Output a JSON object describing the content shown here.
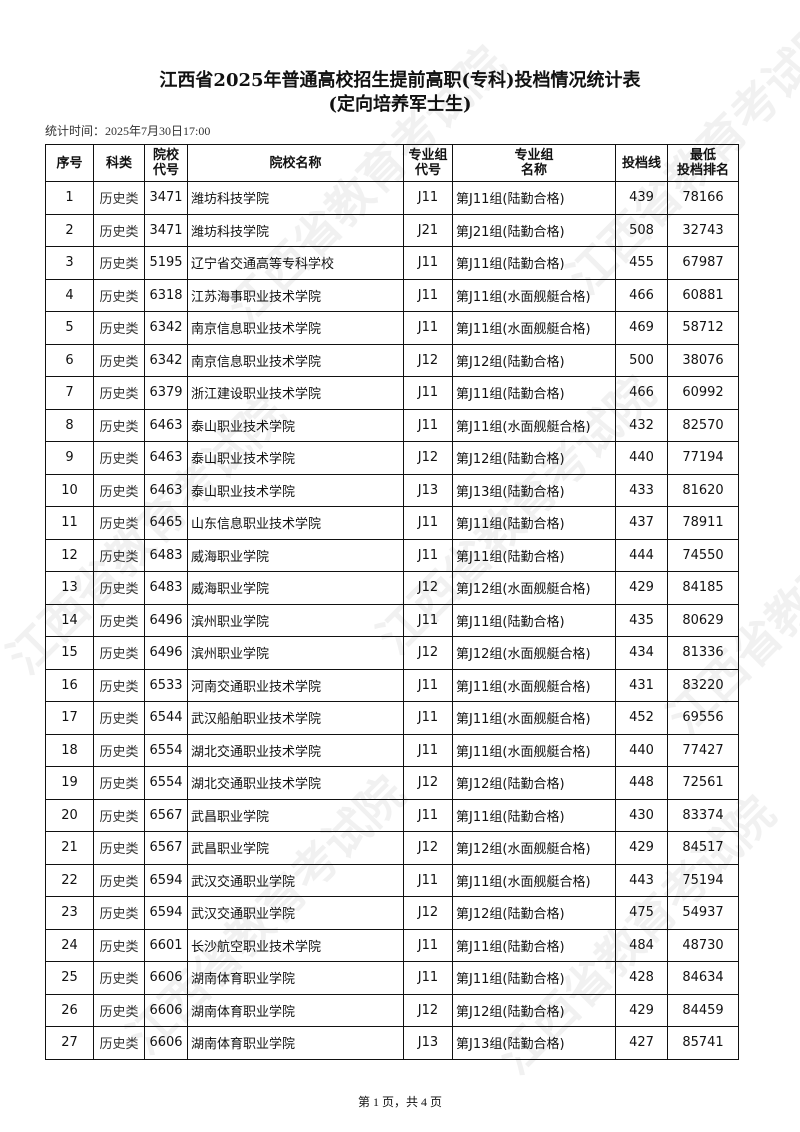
{
  "title": "江西省2025年普通高校招生提前高职(专科)投档情况统计表",
  "subtitle": "(定向培养军士生)",
  "timestamp": "统计时间：2025年7月30日17:00",
  "watermark": "江西省教育考试院",
  "columns": [
    "序号",
    "科类",
    "院校\n代号",
    "院校名称",
    "专业组\n代号",
    "专业组\n名称",
    "投档线",
    "最低\n投档排名"
  ],
  "rows": [
    [
      "1",
      "历史类",
      "3471",
      "潍坊科技学院",
      "J11",
      "第J11组(陆勤合格)",
      "439",
      "78166"
    ],
    [
      "2",
      "历史类",
      "3471",
      "潍坊科技学院",
      "J21",
      "第J21组(陆勤合格)",
      "508",
      "32743"
    ],
    [
      "3",
      "历史类",
      "5195",
      "辽宁省交通高等专科学校",
      "J11",
      "第J11组(陆勤合格)",
      "455",
      "67987"
    ],
    [
      "4",
      "历史类",
      "6318",
      "江苏海事职业技术学院",
      "J11",
      "第J11组(水面舰艇合格)",
      "466",
      "60881"
    ],
    [
      "5",
      "历史类",
      "6342",
      "南京信息职业技术学院",
      "J11",
      "第J11组(水面舰艇合格)",
      "469",
      "58712"
    ],
    [
      "6",
      "历史类",
      "6342",
      "南京信息职业技术学院",
      "J12",
      "第J12组(陆勤合格)",
      "500",
      "38076"
    ],
    [
      "7",
      "历史类",
      "6379",
      "浙江建设职业技术学院",
      "J11",
      "第J11组(陆勤合格)",
      "466",
      "60992"
    ],
    [
      "8",
      "历史类",
      "6463",
      "泰山职业技术学院",
      "J11",
      "第J11组(水面舰艇合格)",
      "432",
      "82570"
    ],
    [
      "9",
      "历史类",
      "6463",
      "泰山职业技术学院",
      "J12",
      "第J12组(陆勤合格)",
      "440",
      "77194"
    ],
    [
      "10",
      "历史类",
      "6463",
      "泰山职业技术学院",
      "J13",
      "第J13组(陆勤合格)",
      "433",
      "81620"
    ],
    [
      "11",
      "历史类",
      "6465",
      "山东信息职业技术学院",
      "J11",
      "第J11组(陆勤合格)",
      "437",
      "78911"
    ],
    [
      "12",
      "历史类",
      "6483",
      "威海职业学院",
      "J11",
      "第J11组(陆勤合格)",
      "444",
      "74550"
    ],
    [
      "13",
      "历史类",
      "6483",
      "威海职业学院",
      "J12",
      "第J12组(水面舰艇合格)",
      "429",
      "84185"
    ],
    [
      "14",
      "历史类",
      "6496",
      "滨州职业学院",
      "J11",
      "第J11组(陆勤合格)",
      "435",
      "80629"
    ],
    [
      "15",
      "历史类",
      "6496",
      "滨州职业学院",
      "J12",
      "第J12组(水面舰艇合格)",
      "434",
      "81336"
    ],
    [
      "16",
      "历史类",
      "6533",
      "河南交通职业技术学院",
      "J11",
      "第J11组(水面舰艇合格)",
      "431",
      "83220"
    ],
    [
      "17",
      "历史类",
      "6544",
      "武汉船舶职业技术学院",
      "J11",
      "第J11组(水面舰艇合格)",
      "452",
      "69556"
    ],
    [
      "18",
      "历史类",
      "6554",
      "湖北交通职业技术学院",
      "J11",
      "第J11组(水面舰艇合格)",
      "440",
      "77427"
    ],
    [
      "19",
      "历史类",
      "6554",
      "湖北交通职业技术学院",
      "J12",
      "第J12组(陆勤合格)",
      "448",
      "72561"
    ],
    [
      "20",
      "历史类",
      "6567",
      "武昌职业学院",
      "J11",
      "第J11组(陆勤合格)",
      "430",
      "83374"
    ],
    [
      "21",
      "历史类",
      "6567",
      "武昌职业学院",
      "J12",
      "第J12组(水面舰艇合格)",
      "429",
      "84517"
    ],
    [
      "22",
      "历史类",
      "6594",
      "武汉交通职业学院",
      "J11",
      "第J11组(水面舰艇合格)",
      "443",
      "75194"
    ],
    [
      "23",
      "历史类",
      "6594",
      "武汉交通职业学院",
      "J12",
      "第J12组(陆勤合格)",
      "475",
      "54937"
    ],
    [
      "24",
      "历史类",
      "6601",
      "长沙航空职业技术学院",
      "J11",
      "第J11组(陆勤合格)",
      "484",
      "48730"
    ],
    [
      "25",
      "历史类",
      "6606",
      "湖南体育职业学院",
      "J11",
      "第J11组(陆勤合格)",
      "428",
      "84634"
    ],
    [
      "26",
      "历史类",
      "6606",
      "湖南体育职业学院",
      "J12",
      "第J12组(陆勤合格)",
      "429",
      "84459"
    ],
    [
      "27",
      "历史类",
      "6606",
      "湖南体育职业学院",
      "J13",
      "第J13组(陆勤合格)",
      "427",
      "85741"
    ]
  ],
  "footer": "第 1 页，共 4 页"
}
